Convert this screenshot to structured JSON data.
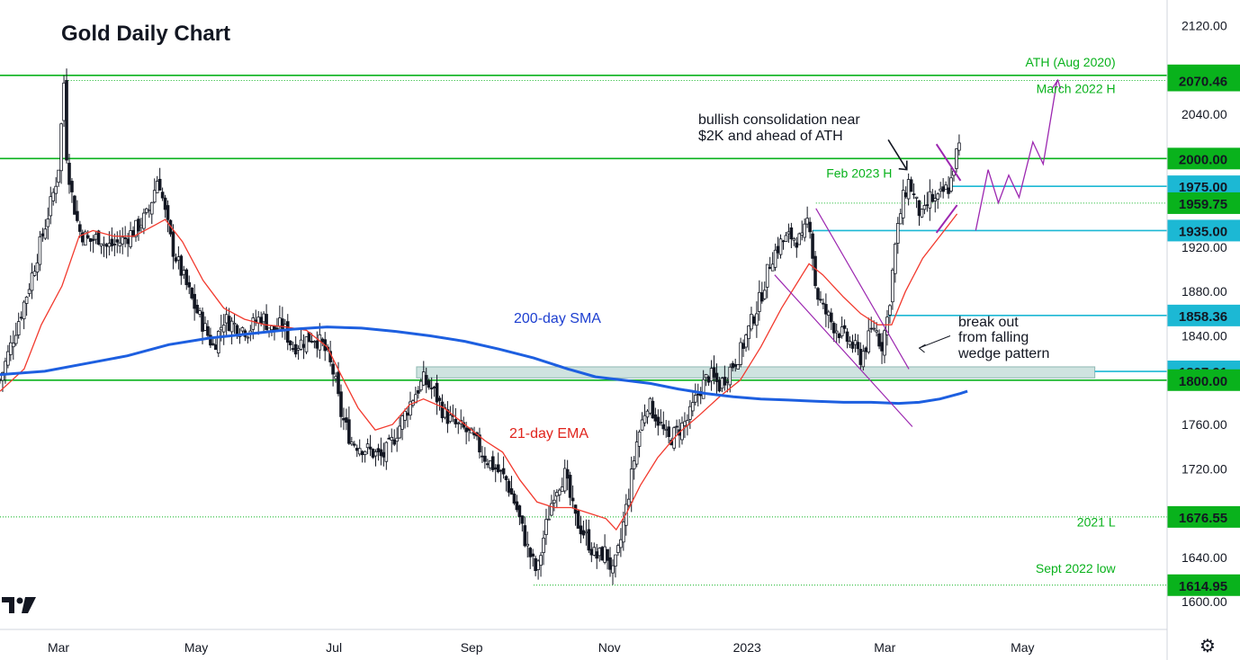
{
  "title": "Gold Daily Chart",
  "colors": {
    "support_green": "#09b21c",
    "level_cyan": "#1cb8d4",
    "sma_blue": "#1d5fe0",
    "ema_red": "#f23a2e",
    "pattern_purple": "#9c27b0",
    "candle": "#131722",
    "zone_fill": "#cfe3e0"
  },
  "icons": {
    "logo": "tradingview-logo",
    "settings": "gear-icon"
  },
  "chart_data": {
    "type": "candlestick",
    "title": "Gold Daily Chart",
    "ylim": [
      1575,
      2135
    ],
    "y_ticks": [
      "2120.00",
      "2040.00",
      "1920.00",
      "1880.00",
      "1840.00",
      "1760.00",
      "1720.00",
      "1640.00",
      "1600.00"
    ],
    "x_ticks": [
      "Mar",
      "May",
      "Jul",
      "Sep",
      "Nov",
      "2023",
      "Mar",
      "May"
    ],
    "x_tick_positions": [
      0.5,
      2.5,
      4.5,
      6.5,
      8.5,
      10.5,
      12.5,
      14.5
    ],
    "xlim": [
      -0.35,
      16.6
    ],
    "price_levels": [
      {
        "value": "2075.11",
        "color": "green",
        "line": "solid"
      },
      {
        "value": "2070.46",
        "color": "green",
        "line": "dotted"
      },
      {
        "value": "2000.00",
        "color": "green",
        "line": "solid"
      },
      {
        "value": "1975.00",
        "color": "cyan",
        "line": "solid"
      },
      {
        "value": "1959.75",
        "color": "green",
        "line": "dotted"
      },
      {
        "value": "1935.00",
        "color": "cyan",
        "line": "solid"
      },
      {
        "value": "1858.36",
        "color": "cyan",
        "line": "solid"
      },
      {
        "value": "1807.91",
        "color": "cyan",
        "line": "zone"
      },
      {
        "value": "1800.00",
        "color": "green",
        "line": "solid"
      },
      {
        "value": "1676.55",
        "color": "green",
        "line": "dotted"
      },
      {
        "value": "1614.95",
        "color": "green",
        "line": "dotted"
      }
    ],
    "annotations_green": [
      {
        "text": "ATH (Aug 2020)",
        "x": 15.85,
        "y": 2083
      },
      {
        "text": "March 2022 H",
        "x": 15.85,
        "y": 2059
      },
      {
        "text": "Feb 2023 H",
        "x": 11.65,
        "y": 1983
      },
      {
        "text": "2021 L",
        "x": 15.85,
        "y": 1668
      },
      {
        "text": "Sept 2022 low",
        "x": 15.85,
        "y": 1626
      }
    ],
    "annotations_text": {
      "sma": "200-day SMA",
      "ema": "21-day EMA",
      "consolidation_1": "bullish consolidation near",
      "consolidation_2": "$2K and ahead of ATH",
      "breakout_1": "break out",
      "breakout_2": "from falling",
      "breakout_3": "wedge pattern"
    },
    "series": [
      {
        "name": "Price",
        "points": [
          [
            -0.35,
            1800
          ],
          [
            -0.25,
            1820
          ],
          [
            -0.1,
            1850
          ],
          [
            0.05,
            1880
          ],
          [
            0.2,
            1915
          ],
          [
            0.35,
            1950
          ],
          [
            0.45,
            1975
          ],
          [
            0.52,
            2000
          ],
          [
            0.55,
            2045
          ],
          [
            0.58,
            2070
          ],
          [
            0.62,
            2000
          ],
          [
            0.7,
            1965
          ],
          [
            0.8,
            1935
          ],
          [
            0.95,
            1925
          ],
          [
            1.1,
            1930
          ],
          [
            1.2,
            1920
          ],
          [
            1.4,
            1925
          ],
          [
            1.6,
            1935
          ],
          [
            1.8,
            1950
          ],
          [
            1.95,
            1985
          ],
          [
            2.05,
            1950
          ],
          [
            2.15,
            1920
          ],
          [
            2.3,
            1895
          ],
          [
            2.45,
            1870
          ],
          [
            2.6,
            1850
          ],
          [
            2.75,
            1830
          ],
          [
            2.9,
            1855
          ],
          [
            3.05,
            1850
          ],
          [
            3.25,
            1845
          ],
          [
            3.45,
            1858
          ],
          [
            3.6,
            1845
          ],
          [
            3.75,
            1850
          ],
          [
            3.9,
            1830
          ],
          [
            4.05,
            1835
          ],
          [
            4.2,
            1840
          ],
          [
            4.35,
            1830
          ],
          [
            4.5,
            1805
          ],
          [
            4.6,
            1770
          ],
          [
            4.75,
            1745
          ],
          [
            4.9,
            1740
          ],
          [
            5.05,
            1735
          ],
          [
            5.2,
            1730
          ],
          [
            5.35,
            1745
          ],
          [
            5.5,
            1765
          ],
          [
            5.65,
            1785
          ],
          [
            5.8,
            1800
          ],
          [
            5.95,
            1790
          ],
          [
            6.1,
            1770
          ],
          [
            6.25,
            1760
          ],
          [
            6.4,
            1755
          ],
          [
            6.55,
            1745
          ],
          [
            6.7,
            1730
          ],
          [
            6.85,
            1720
          ],
          [
            7.0,
            1710
          ],
          [
            7.15,
            1685
          ],
          [
            7.3,
            1650
          ],
          [
            7.45,
            1625
          ],
          [
            7.55,
            1660
          ],
          [
            7.7,
            1700
          ],
          [
            7.85,
            1715
          ],
          [
            8.0,
            1675
          ],
          [
            8.15,
            1660
          ],
          [
            8.3,
            1640
          ],
          [
            8.45,
            1645
          ],
          [
            8.55,
            1625
          ],
          [
            8.65,
            1650
          ],
          [
            8.8,
            1705
          ],
          [
            8.9,
            1745
          ],
          [
            9.05,
            1780
          ],
          [
            9.2,
            1765
          ],
          [
            9.35,
            1745
          ],
          [
            9.5,
            1755
          ],
          [
            9.65,
            1765
          ],
          [
            9.8,
            1790
          ],
          [
            9.95,
            1805
          ],
          [
            10.1,
            1795
          ],
          [
            10.25,
            1810
          ],
          [
            10.4,
            1825
          ],
          [
            10.55,
            1850
          ],
          [
            10.7,
            1875
          ],
          [
            10.85,
            1910
          ],
          [
            11.0,
            1925
          ],
          [
            11.15,
            1930
          ],
          [
            11.3,
            1925
          ],
          [
            11.4,
            1950
          ],
          [
            11.5,
            1880
          ],
          [
            11.6,
            1865
          ],
          [
            11.75,
            1850
          ],
          [
            11.9,
            1840
          ],
          [
            12.05,
            1830
          ],
          [
            12.15,
            1820
          ],
          [
            12.25,
            1835
          ],
          [
            12.35,
            1850
          ],
          [
            12.45,
            1830
          ],
          [
            12.55,
            1860
          ],
          [
            12.65,
            1920
          ],
          [
            12.75,
            1960
          ],
          [
            12.85,
            1980
          ],
          [
            12.95,
            1960
          ],
          [
            13.05,
            1945
          ],
          [
            13.15,
            1965
          ],
          [
            13.25,
            1960
          ],
          [
            13.35,
            1970
          ],
          [
            13.45,
            1975
          ],
          [
            13.52,
            2000
          ],
          [
            13.58,
            2010
          ]
        ]
      },
      {
        "name": "21-day EMA",
        "points": [
          [
            -0.35,
            1790
          ],
          [
            0.0,
            1810
          ],
          [
            0.25,
            1850
          ],
          [
            0.55,
            1885
          ],
          [
            0.8,
            1930
          ],
          [
            1.0,
            1935
          ],
          [
            1.3,
            1930
          ],
          [
            1.6,
            1930
          ],
          [
            1.9,
            1940
          ],
          [
            2.05,
            1945
          ],
          [
            2.3,
            1925
          ],
          [
            2.6,
            1890
          ],
          [
            2.9,
            1865
          ],
          [
            3.2,
            1855
          ],
          [
            3.5,
            1850
          ],
          [
            3.8,
            1848
          ],
          [
            4.1,
            1845
          ],
          [
            4.4,
            1830
          ],
          [
            4.6,
            1805
          ],
          [
            4.85,
            1775
          ],
          [
            5.1,
            1755
          ],
          [
            5.35,
            1760
          ],
          [
            5.6,
            1778
          ],
          [
            5.8,
            1783
          ],
          [
            6.1,
            1775
          ],
          [
            6.4,
            1760
          ],
          [
            6.7,
            1745
          ],
          [
            6.95,
            1735
          ],
          [
            7.2,
            1710
          ],
          [
            7.45,
            1690
          ],
          [
            7.7,
            1685
          ],
          [
            7.95,
            1685
          ],
          [
            8.2,
            1680
          ],
          [
            8.45,
            1675
          ],
          [
            8.6,
            1665
          ],
          [
            8.75,
            1680
          ],
          [
            8.95,
            1705
          ],
          [
            9.2,
            1730
          ],
          [
            9.5,
            1752
          ],
          [
            9.8,
            1768
          ],
          [
            10.1,
            1785
          ],
          [
            10.4,
            1800
          ],
          [
            10.7,
            1830
          ],
          [
            11.0,
            1865
          ],
          [
            11.3,
            1895
          ],
          [
            11.4,
            1905
          ],
          [
            11.6,
            1895
          ],
          [
            11.9,
            1875
          ],
          [
            12.15,
            1860
          ],
          [
            12.4,
            1850
          ],
          [
            12.6,
            1850
          ],
          [
            12.8,
            1880
          ],
          [
            13.05,
            1910
          ],
          [
            13.3,
            1930
          ],
          [
            13.55,
            1950
          ]
        ]
      },
      {
        "name": "200-day SMA",
        "points": [
          [
            -0.35,
            1805
          ],
          [
            0.3,
            1808
          ],
          [
            0.9,
            1815
          ],
          [
            1.5,
            1822
          ],
          [
            2.1,
            1832
          ],
          [
            2.7,
            1838
          ],
          [
            3.3,
            1842
          ],
          [
            3.9,
            1846
          ],
          [
            4.4,
            1848
          ],
          [
            4.9,
            1847
          ],
          [
            5.4,
            1844
          ],
          [
            5.9,
            1840
          ],
          [
            6.4,
            1835
          ],
          [
            6.9,
            1828
          ],
          [
            7.4,
            1820
          ],
          [
            7.9,
            1810
          ],
          [
            8.3,
            1803
          ],
          [
            8.7,
            1800
          ],
          [
            9.1,
            1797
          ],
          [
            9.5,
            1792
          ],
          [
            9.9,
            1788
          ],
          [
            10.3,
            1785
          ],
          [
            10.7,
            1783
          ],
          [
            11.1,
            1782
          ],
          [
            11.5,
            1781
          ],
          [
            11.9,
            1780
          ],
          [
            12.3,
            1780
          ],
          [
            12.7,
            1779
          ],
          [
            13.0,
            1780
          ],
          [
            13.3,
            1783
          ],
          [
            13.6,
            1788
          ],
          [
            13.7,
            1790
          ]
        ]
      },
      {
        "name": "Projection",
        "points": [
          [
            13.82,
            1935
          ],
          [
            14.0,
            1990
          ],
          [
            14.15,
            1960
          ],
          [
            14.3,
            1985
          ],
          [
            14.45,
            1965
          ],
          [
            14.65,
            2015
          ],
          [
            14.8,
            1995
          ],
          [
            15.0,
            2070
          ]
        ]
      }
    ]
  }
}
